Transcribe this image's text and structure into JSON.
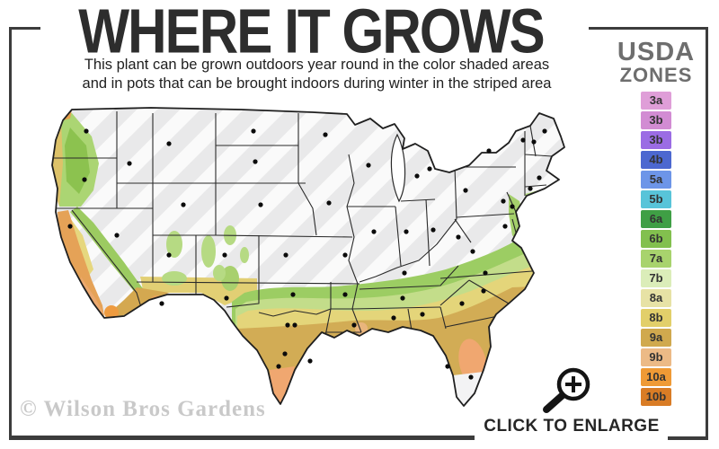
{
  "header": {
    "title": "WHERE IT GROWS",
    "subtitle_line1": "This plant can be grown outdoors year round in the color shaded areas",
    "subtitle_line2": "and in pots that can be brought indoors during winter in the striped area"
  },
  "legend": {
    "title_line1": "USDA",
    "title_line2": "ZONES",
    "zones": [
      {
        "label": "3a",
        "color": "#df9ed8"
      },
      {
        "label": "3b",
        "color": "#d28cd3"
      },
      {
        "label": "3b",
        "color": "#9b6ce4"
      },
      {
        "label": "4b",
        "color": "#4c68d0"
      },
      {
        "label": "5a",
        "color": "#6d95e8"
      },
      {
        "label": "5b",
        "color": "#58c4d9"
      },
      {
        "label": "6a",
        "color": "#3f9f45"
      },
      {
        "label": "6b",
        "color": "#82c04e"
      },
      {
        "label": "7a",
        "color": "#a8d36d"
      },
      {
        "label": "7b",
        "color": "#dbedb9"
      },
      {
        "label": "8a",
        "color": "#e7e2a5"
      },
      {
        "label": "8b",
        "color": "#e2cf6a"
      },
      {
        "label": "9a",
        "color": "#d0a94e"
      },
      {
        "label": "9b",
        "color": "#ecba86"
      },
      {
        "label": "10a",
        "color": "#ef9a35"
      },
      {
        "label": "10b",
        "color": "#d97c25"
      }
    ]
  },
  "footer": {
    "watermark": "© Wilson Bros Gardens",
    "enlarge_label": "CLICK TO ENLARGE"
  },
  "colors": {
    "frame": "#3c3c3c",
    "title": "#2d2d2d",
    "legendtitle": "#6e6e6e",
    "watermark": "#c9c9c9",
    "striped_region": "#e9e9ea",
    "stripe_highlight": "#fafafa"
  }
}
